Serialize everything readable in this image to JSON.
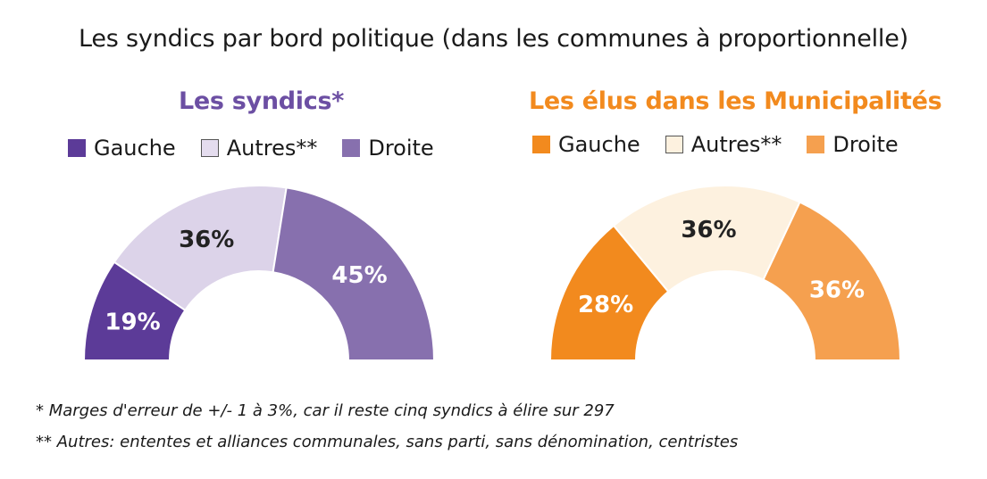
{
  "title": "Les syndics par bord politique (dans les communes à proportionnelle)",
  "colors": {
    "syndics": [
      "#5c3b98",
      "#dcd3e9",
      "#8770ae"
    ],
    "elus": [
      "#f28a1e",
      "#fdf1df",
      "#f5a04f"
    ]
  },
  "chart_data": [
    {
      "type": "pie",
      "shape": "half-donut",
      "title": "Les syndics*",
      "categories": [
        "Gauche",
        "Autres**",
        "Droite"
      ],
      "values": [
        19,
        36,
        45
      ],
      "labels": [
        "19%",
        "36%",
        "45%"
      ],
      "unit": "%"
    },
    {
      "type": "pie",
      "shape": "half-donut",
      "title": "Les élus dans les Municipalités",
      "categories": [
        "Gauche",
        "Autres**",
        "Droite"
      ],
      "values": [
        28,
        36,
        36
      ],
      "labels": [
        "28%",
        "36%",
        "36%"
      ],
      "unit": "%"
    }
  ],
  "footnotes": [
    "* Marges d'erreur de +/- 1 à 3%, car il reste cinq syndics à élire sur 297",
    "** Autres: ententes et alliances communales, sans parti, sans dénomination, centristes"
  ]
}
